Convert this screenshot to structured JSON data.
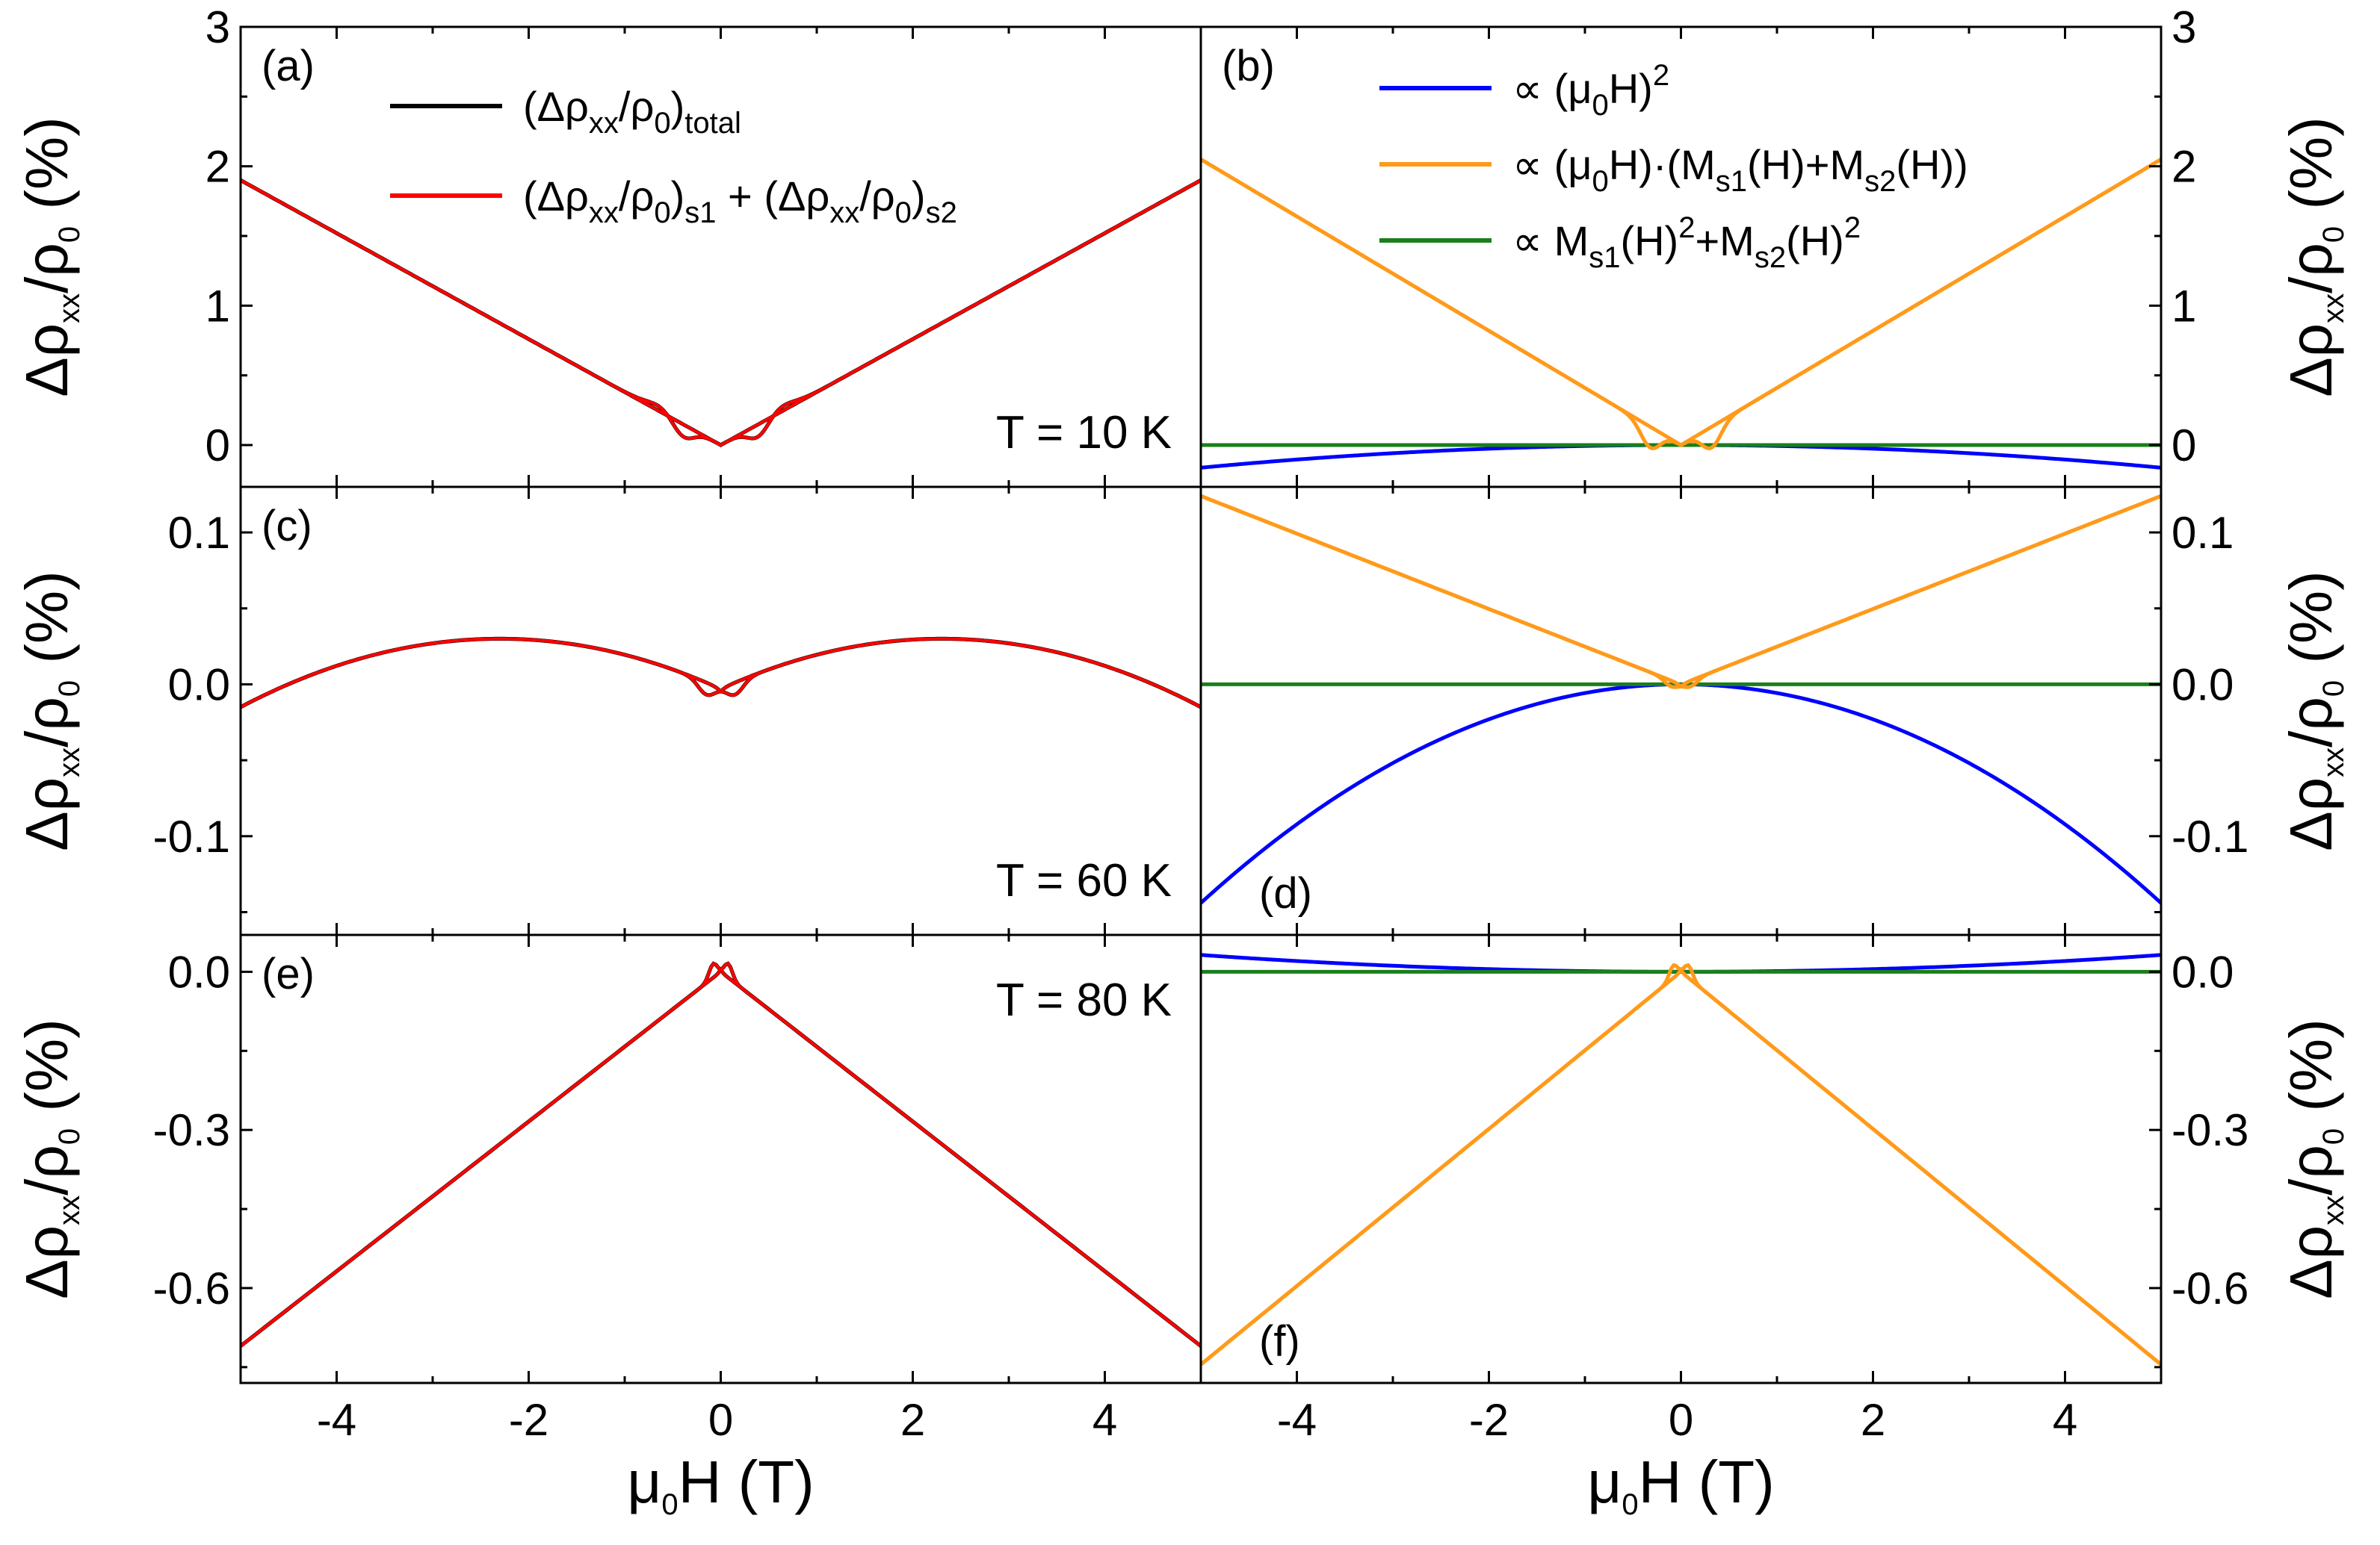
{
  "chart_data": {
    "type": "line",
    "x_axis": {
      "label": "μ0H (T)",
      "range": [
        -5,
        5
      ],
      "ticks": [
        "-4",
        "-2",
        "0",
        "2",
        "4"
      ]
    },
    "y_axis_label": "Δρxx/ρ0 (%)",
    "rows": [
      {
        "panels": [
          "(a)",
          "(b)"
        ],
        "temperature": "T = 10 K",
        "ylim": [
          -0.3,
          3
        ],
        "yticks": [
          0,
          1,
          2,
          3
        ],
        "ytick_labels": [
          "0",
          "1",
          "2",
          "3"
        ],
        "total": {
          "min": -0.15,
          "at5": 1.9,
          "peak_field": 0.4
        },
        "quadratic_coef": -0.0065,
        "cross_at5": 2.05,
        "cross_dip": -0.15,
        "hysteresis": true
      },
      {
        "panels": [
          "(c)",
          "(d)"
        ],
        "temperature": "T = 60 K",
        "ylim": [
          -0.165,
          0.13
        ],
        "yticks": [
          -0.1,
          0.0,
          0.1
        ],
        "ytick_labels": [
          "-0.1",
          "0.0",
          "0.1"
        ],
        "total": {
          "max": 0.03,
          "max_at": 2.3,
          "at5": -0.015,
          "at0": -0.003
        },
        "quadratic_coef": -0.00576,
        "cross_at5": 0.124,
        "hysteresis": true
      },
      {
        "panels": [
          "(e)",
          "(f)"
        ],
        "temperature": "T = 80 K",
        "ylim": [
          -0.78,
          0.07
        ],
        "yticks": [
          -0.6,
          -0.3,
          0.0
        ],
        "ytick_labels": [
          "-0.6",
          "-0.3",
          "0.0"
        ],
        "total": {
          "at5": -0.71,
          "peak": 0.012
        },
        "quadratic_coef": 0.00128,
        "cross_at5": -0.745,
        "hysteresis": true
      }
    ],
    "legend_a": [
      {
        "name": "(Δρxx/ρ0)total",
        "color": "#000000"
      },
      {
        "name": "(Δρxx/ρ0)s1 + (Δρxx/ρ0)s2",
        "color": "#ff0000"
      }
    ],
    "legend_b": [
      {
        "name": "∝ (μ0H)²",
        "color": "#0000ff"
      },
      {
        "name": "∝ (μ0H)·(Ms1(H)+Ms2(H))",
        "color": "#ff9a1a"
      },
      {
        "name": "∝ Ms1(H)²+Ms2(H)²",
        "color": "#1a7f1a"
      }
    ],
    "colors": {
      "total": "#000000",
      "fit": "#ff0000",
      "quadratic": "#0000ff",
      "cross": "#ff9a1a",
      "mag": "#1a7f1a"
    }
  }
}
